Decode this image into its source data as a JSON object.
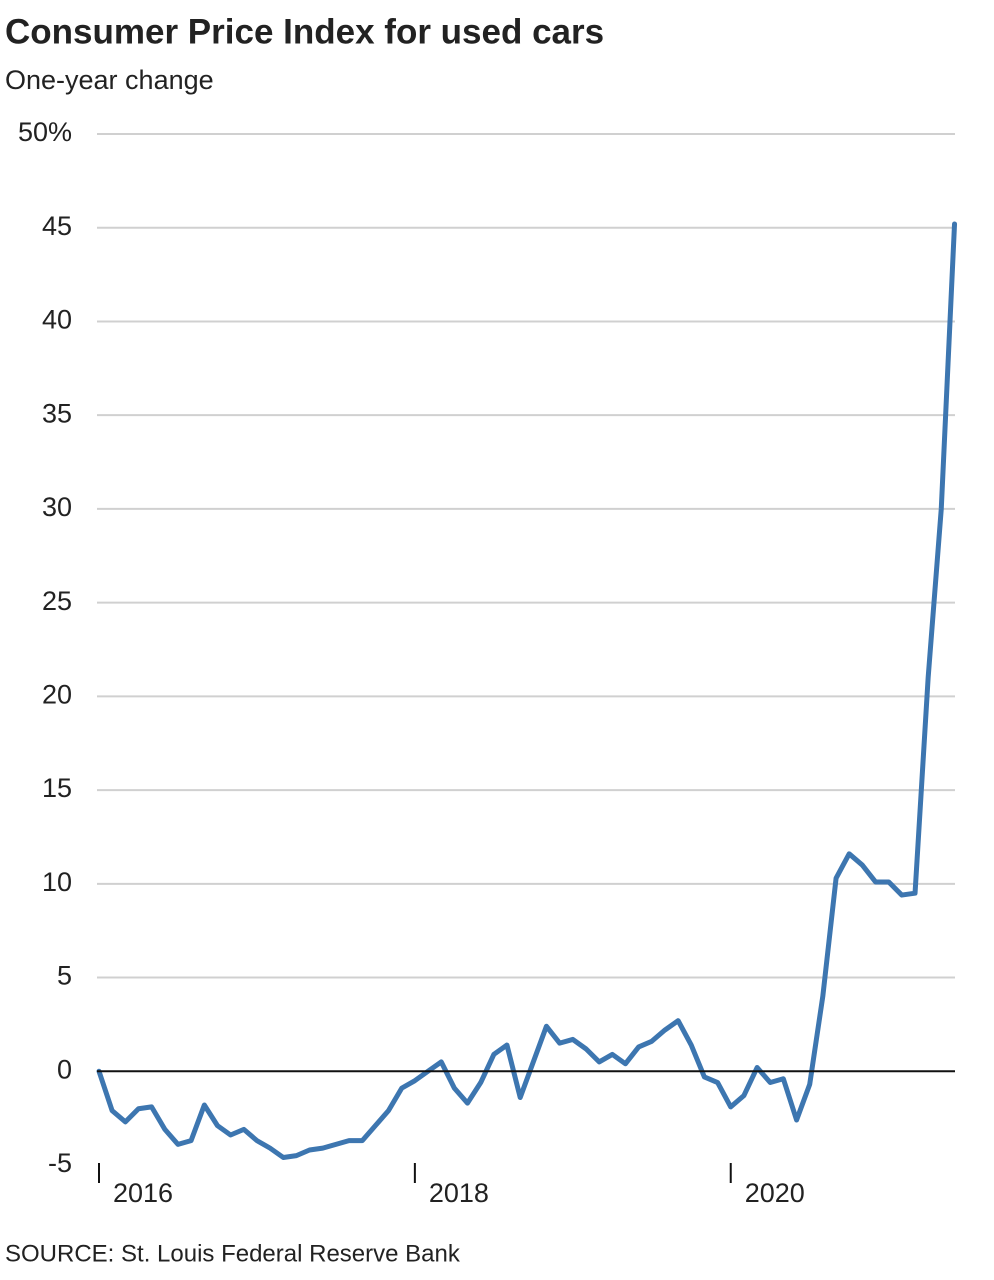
{
  "chart_data": {
    "type": "line",
    "title": "Consumer Price Index for used cars",
    "subtitle": "One-year change",
    "source": "SOURCE: St. Louis Federal Reserve Bank",
    "x": [
      2016,
      2016.083,
      2016.167,
      2016.25,
      2016.333,
      2016.417,
      2016.5,
      2016.583,
      2016.667,
      2016.75,
      2016.833,
      2016.917,
      2017,
      2017.083,
      2017.167,
      2017.25,
      2017.333,
      2017.417,
      2017.5,
      2017.583,
      2017.667,
      2017.75,
      2017.833,
      2017.917,
      2018,
      2018.083,
      2018.167,
      2018.25,
      2018.333,
      2018.417,
      2018.5,
      2018.583,
      2018.667,
      2018.75,
      2018.833,
      2018.917,
      2019,
      2019.083,
      2019.167,
      2019.25,
      2019.333,
      2019.417,
      2019.5,
      2019.583,
      2019.667,
      2019.75,
      2019.833,
      2019.917,
      2020,
      2020.083,
      2020.167,
      2020.25,
      2020.333,
      2020.417,
      2020.5,
      2020.583,
      2020.667,
      2020.75,
      2020.833,
      2020.917,
      2021,
      2021.083,
      2021.167,
      2021.25,
      2021.333,
      2021.417
    ],
    "values": [
      0,
      -2.1,
      -2.7,
      -2.0,
      -1.9,
      -3.1,
      -3.9,
      -3.7,
      -1.8,
      -2.9,
      -3.4,
      -3.1,
      -3.7,
      -4.1,
      -4.6,
      -4.5,
      -4.2,
      -4.1,
      -3.9,
      -3.7,
      -3.7,
      -2.9,
      -2.1,
      -0.9,
      -0.5,
      0.0,
      0.5,
      -0.9,
      -1.7,
      -0.6,
      0.9,
      1.4,
      -1.4,
      0.5,
      2.4,
      1.5,
      1.7,
      1.2,
      0.5,
      0.9,
      0.4,
      1.3,
      1.6,
      2.2,
      2.7,
      1.4,
      -0.3,
      -0.6,
      -1.9,
      -1.3,
      0.2,
      -0.6,
      -0.4,
      -2.6,
      -0.7,
      4.0,
      10.3,
      11.6,
      11.0,
      10.1,
      10.1,
      9.4,
      9.5,
      21.0,
      30.0,
      45.2
    ],
    "color": "#3d76b0",
    "xlim": [
      2016,
      2021.42
    ],
    "xticks": [
      2016,
      2018,
      2020
    ],
    "ylim": [
      -5,
      50
    ],
    "yticks": [
      -5,
      0,
      5,
      10,
      15,
      20,
      25,
      30,
      35,
      40,
      45,
      {
        "value": 50,
        "label": "50%"
      }
    ],
    "grid": true
  }
}
